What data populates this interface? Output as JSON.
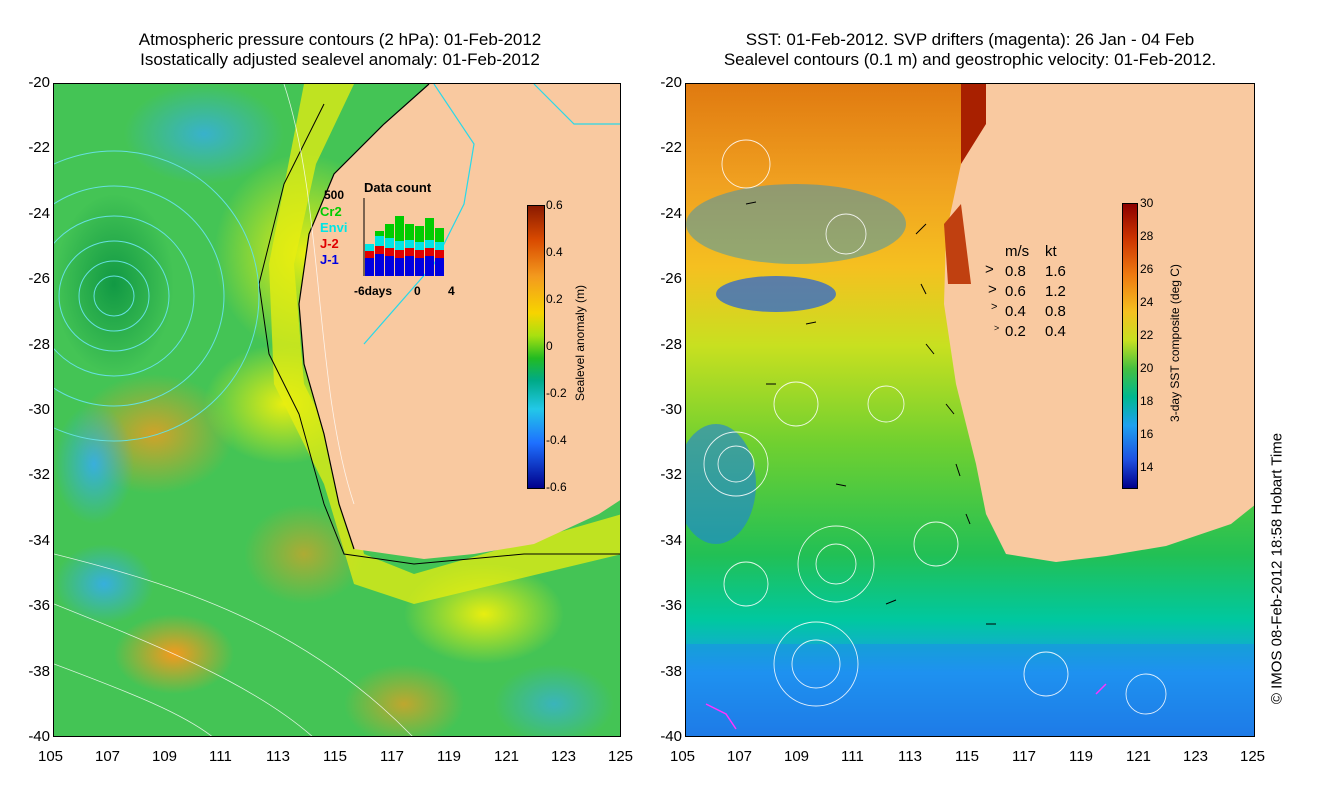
{
  "left": {
    "title_line1": "Atmospheric pressure contours (2 hPa): 01-Feb-2012",
    "title_line2": "Isostatically adjusted sealevel anomaly: 01-Feb-2012",
    "colorbar": {
      "label": "Sealevel anomaly (m)",
      "ticks": [
        "0.6",
        "0.4",
        "0.2",
        "0",
        "-0.2",
        "-0.4",
        "-0.6"
      ]
    },
    "data_count": {
      "title": "Data count",
      "max_label": "500",
      "x_labels": [
        "-6days",
        "0",
        "4"
      ],
      "legend": [
        {
          "label": "Cr2",
          "color": "#00cc00"
        },
        {
          "label": "Envi",
          "color": "#00e5e5"
        },
        {
          "label": "J-2",
          "color": "#e00000"
        },
        {
          "label": "J-1",
          "color": "#0000e0"
        }
      ]
    }
  },
  "right": {
    "title_line1": "SST: 01-Feb-2012. SVP drifters (magenta): 26 Jan - 04 Feb",
    "title_line2": "Sealevel contours (0.1 m) and geostrophic velocity: 01-Feb-2012.",
    "colorbar": {
      "label": "3-day SST composite (deg C)",
      "ticks": [
        "30",
        "28",
        "26",
        "24",
        "22",
        "20",
        "18",
        "16",
        "14"
      ]
    },
    "velocity_legend": {
      "header_ms": "m/s",
      "header_kt": "kt",
      "rows": [
        {
          "ms": "0.8",
          "kt": "1.6"
        },
        {
          "ms": "0.6",
          "kt": "1.2"
        },
        {
          "ms": "0.4",
          "kt": "0.8"
        },
        {
          "ms": "0.2",
          "kt": "0.4"
        }
      ]
    }
  },
  "axes": {
    "lat_labels": [
      "-20",
      "-22",
      "-24",
      "-26",
      "-28",
      "-30",
      "-32",
      "-34",
      "-36",
      "-38",
      "-40"
    ],
    "lon_labels": [
      "105",
      "107",
      "109",
      "111",
      "113",
      "115",
      "117",
      "119",
      "121",
      "123",
      "125"
    ]
  },
  "copyright": "© IMOS 08-Feb-2012 18:58 Hobart Time",
  "colors": {
    "land": "#f9c9a0",
    "ssh_positive": "#f7c400",
    "ssh_zero": "#22bb22",
    "ssh_negative": "#1e90ff"
  }
}
